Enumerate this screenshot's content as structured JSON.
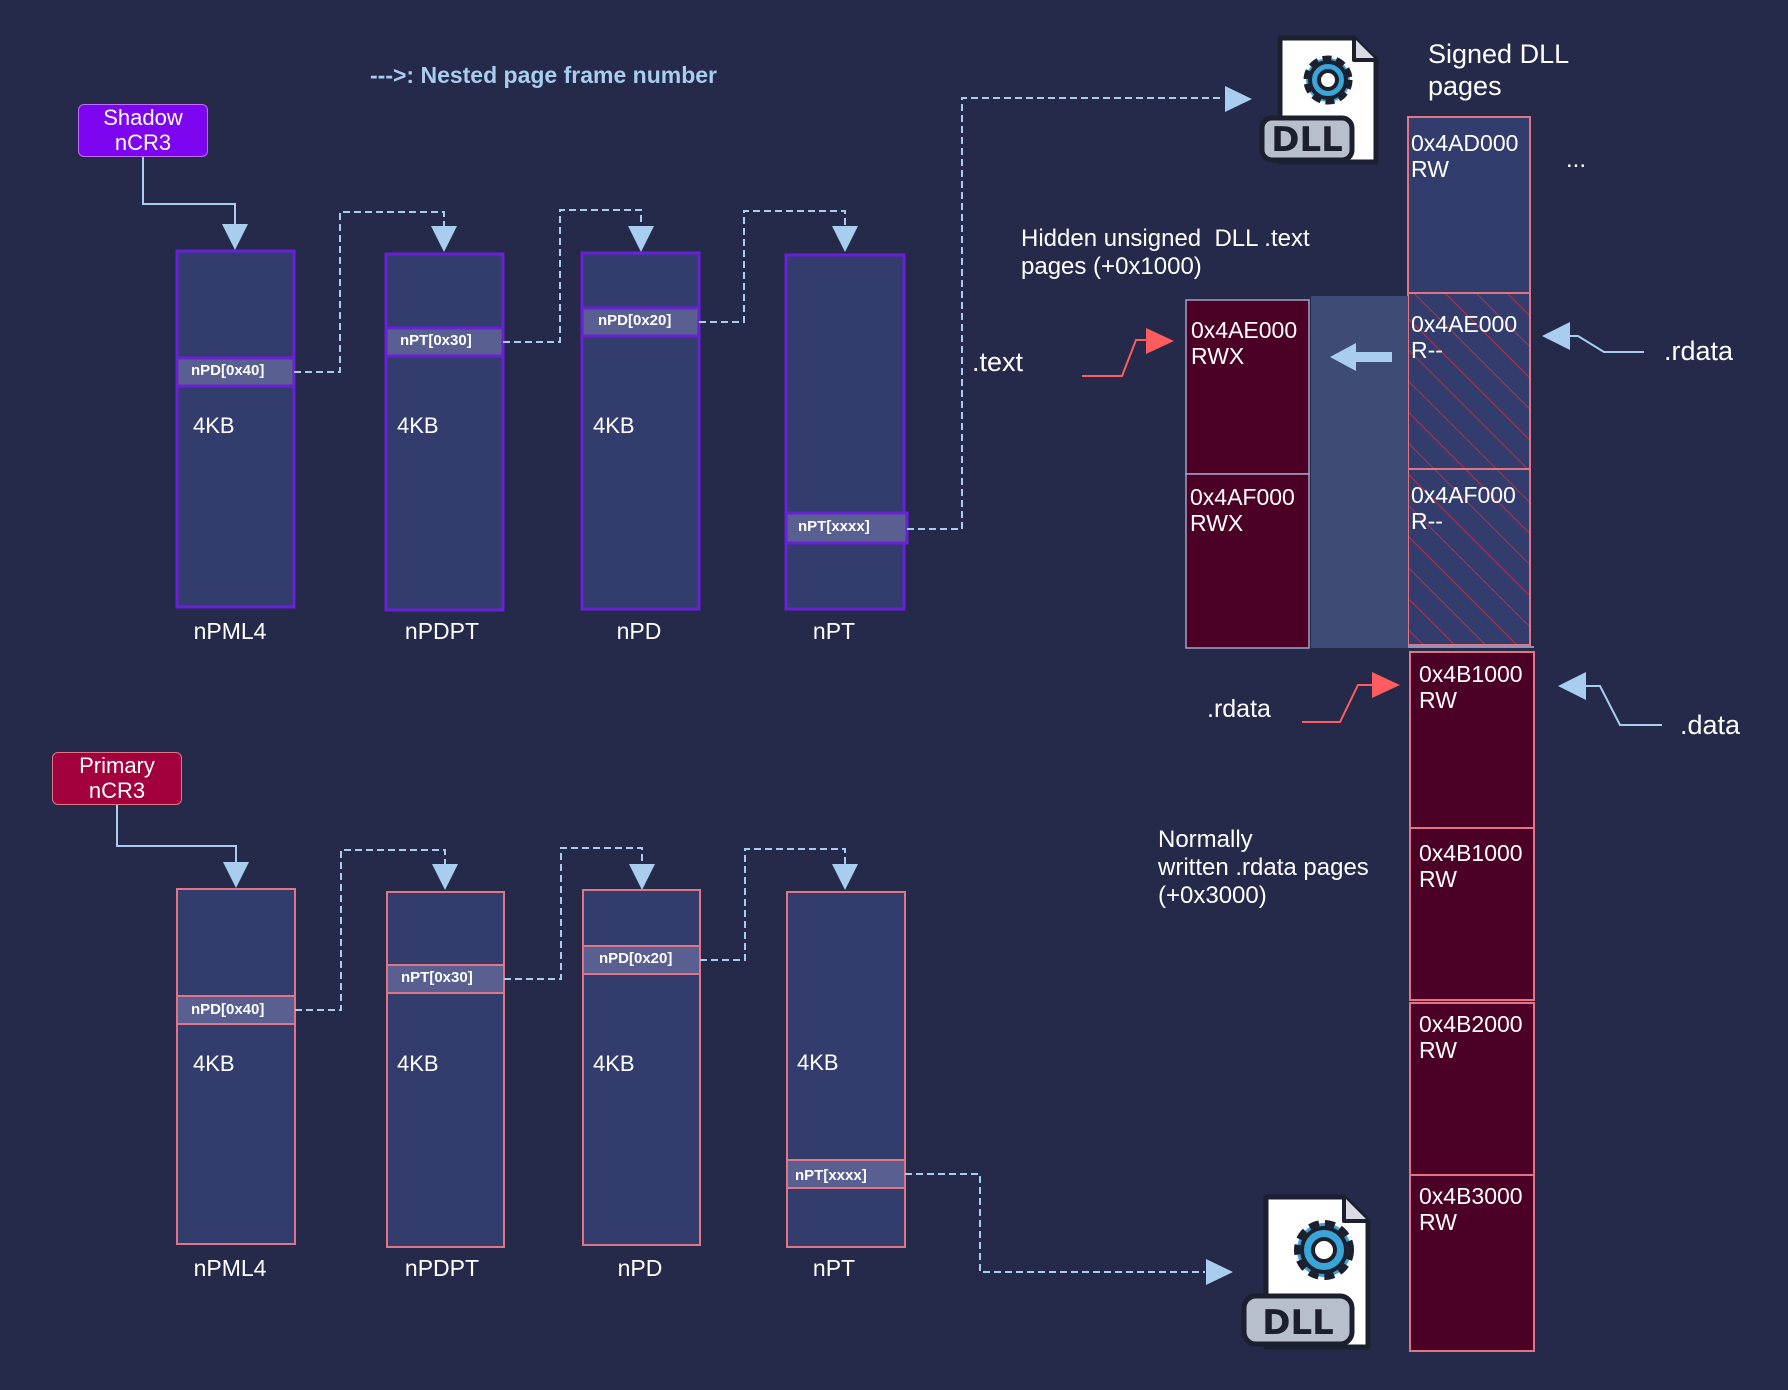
{
  "legend": "--->: Nested page frame number",
  "shadow": {
    "ncr3_label": "Shadow\nnCR3",
    "columns": [
      {
        "label": "nPML4",
        "entry": "nPD[0x40]",
        "size": "4KB"
      },
      {
        "label": "nPDPT",
        "entry": "nPT[0x30]",
        "size": "4KB"
      },
      {
        "label": "nPD",
        "entry": "nPD[0x20]",
        "size": "4KB"
      },
      {
        "label": "nPT",
        "entry": "nPT[xxxx]",
        "size": ""
      }
    ]
  },
  "primary": {
    "ncr3_label": "Primary\nnCR3",
    "columns": [
      {
        "label": "nPML4",
        "entry": "nPD[0x40]",
        "size": "4KB"
      },
      {
        "label": "nPDPT",
        "entry": "nPT[0x30]",
        "size": "4KB"
      },
      {
        "label": "nPD",
        "entry": "nPD[0x20]",
        "size": "4KB"
      },
      {
        "label": "nPT",
        "entry": "nPT[xxxx]",
        "size": "4KB"
      }
    ]
  },
  "signed_dll": {
    "title": "Signed DLL\npages",
    "ellipsis": "...",
    "pages": [
      {
        "addr": "0x4AD000",
        "perm": "RW"
      },
      {
        "addr": "0x4AE000",
        "perm": "R--"
      },
      {
        "addr": "0x4AF000",
        "perm": "R--"
      },
      {
        "addr": "0x4B1000",
        "perm": "RW"
      },
      {
        "addr": "0x4B1000",
        "perm": "RW"
      },
      {
        "addr": "0x4B2000",
        "perm": "RW"
      },
      {
        "addr": "0x4B3000",
        "perm": "RW"
      }
    ]
  },
  "hidden": {
    "title": "Hidden unsigned  DLL .text\npages (+0x1000)",
    "pages": [
      {
        "addr": "0x4AE000",
        "perm": "RWX"
      },
      {
        "addr": "0x4AF000",
        "perm": "RWX"
      }
    ]
  },
  "normally_written": "Normally\nwritten .rdata pages\n(+0x3000)",
  "sections": {
    "text_left": ".text",
    "rdata_left": ".rdata",
    "rdata_right": ".rdata",
    "data_right": ".data"
  },
  "dll_icon_label": "DLL",
  "colors": {
    "background": "#25294a",
    "page_fill": "#323d6d",
    "shadow_border": "#6a20d6",
    "primary_border": "#e07585",
    "dark_red": "#4d0026",
    "arrow_blue": "#a9cdef",
    "arrow_red": "#ff5c5f",
    "shadow_ncr3": "#7d05ef",
    "primary_ncr3": "#a3003e"
  }
}
